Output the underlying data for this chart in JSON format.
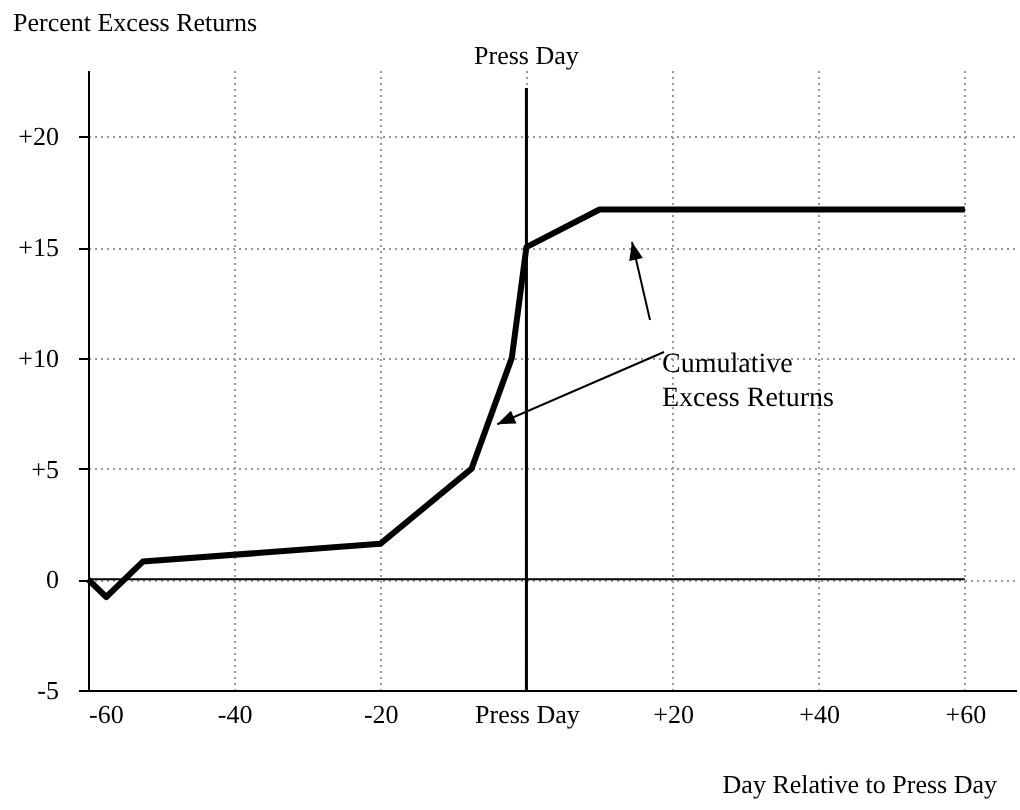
{
  "chart_data": {
    "type": "line",
    "xlabel": "Day Relative to Press Day",
    "ylabel": "Percent Excess Returns",
    "x": [
      -60,
      -57.5,
      -52.5,
      -20,
      -7.5,
      -2,
      0,
      10,
      60
    ],
    "series": [
      {
        "color": "#000000",
        "values": [
          0,
          -0.8,
          0.8,
          1.6,
          5,
          10,
          15,
          16.7,
          16.7
        ]
      }
    ],
    "xlim": [
      -60,
      67
    ],
    "ylim": [
      -5,
      23
    ],
    "xticks": [
      -60,
      -40,
      -20,
      {
        "value": 0,
        "label": "Press Day"
      },
      {
        "value": 20,
        "label": "+20"
      },
      {
        "value": 40,
        "label": "+40"
      },
      {
        "value": 60,
        "label": "+60"
      }
    ],
    "yticks": [
      -5,
      0,
      {
        "value": 5,
        "label": "+5"
      },
      {
        "value": 10,
        "label": "+10"
      },
      {
        "value": 15,
        "label": "+15"
      },
      {
        "value": 20,
        "label": "+20"
      }
    ],
    "ref_lines": [
      {
        "axis": "x",
        "value": 0,
        "label": "Press Day"
      },
      {
        "axis": "y",
        "value": 0,
        "label": null
      }
    ],
    "annotations": [
      {
        "text": "Cumulative\nExcess Returns",
        "x": -4,
        "y": 7
      }
    ],
    "grid": true,
    "marker": "none",
    "line_style": "solid"
  }
}
